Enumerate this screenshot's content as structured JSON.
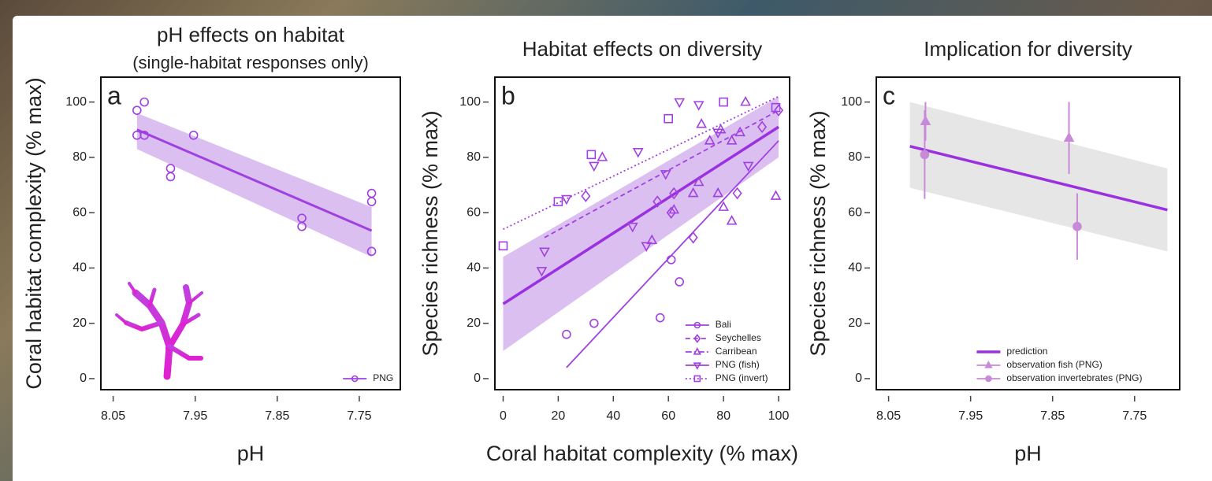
{
  "chart_data": [
    {
      "type": "scatter",
      "title": "pH effects on habitat",
      "subtitle": "(single-habitat responses only)",
      "panel_label": "a",
      "xlabel": "pH",
      "ylabel": "Coral habitat complexity (% max)",
      "xlim": [
        8.065,
        7.7
      ],
      "ylim": [
        -4,
        109
      ],
      "xticks": [
        8.05,
        7.95,
        7.85,
        7.75
      ],
      "yticks": [
        0,
        20,
        40,
        60,
        80,
        100
      ],
      "legend": "lower right",
      "band": {
        "x": [
          8.021,
          7.735
        ],
        "lower": [
          83,
          44
        ],
        "upper": [
          96,
          62
        ],
        "color": "#b070e0"
      },
      "series": [
        {
          "name": "PNG",
          "color": "#a040e0",
          "marker": "circle",
          "linestyle": "solid",
          "x": [
            8.012,
            8.021,
            8.021,
            8.012,
            7.952,
            7.98,
            7.98,
            7.82,
            7.82,
            7.735,
            7.735,
            7.735
          ],
          "values": [
            100,
            97,
            88,
            88,
            88,
            76,
            73,
            58,
            55,
            67,
            64,
            46
          ],
          "fit_x": [
            8.021,
            7.735
          ],
          "fit_y": [
            90,
            53.5
          ]
        }
      ]
    },
    {
      "type": "scatter",
      "title": "Habitat effects on diversity",
      "panel_label": "b",
      "xlabel": "Coral habitat complexity (% max)",
      "ylabel": "Species richness (% max)",
      "xlim": [
        -3,
        104
      ],
      "ylim": [
        -4,
        109
      ],
      "xticks": [
        0,
        20,
        40,
        60,
        80,
        100
      ],
      "yticks": [
        0,
        20,
        40,
        60,
        80,
        100
      ],
      "legend": "lower right",
      "band": {
        "x": [
          0,
          100
        ],
        "lower": [
          10,
          80
        ],
        "upper": [
          44,
          102
        ],
        "color": "#b070e0"
      },
      "trend": {
        "x": [
          0,
          100
        ],
        "values": [
          27,
          91
        ],
        "color": "#9b30e0"
      },
      "series": [
        {
          "name": "Bali",
          "color": "#a040e0",
          "marker": "circle",
          "linestyle": "solid",
          "x": [
            23,
            33,
            57,
            61,
            64
          ],
          "values": [
            16,
            20,
            22,
            43,
            35
          ],
          "fit_x": [
            23,
            100
          ],
          "fit_y": [
            4,
            86
          ]
        },
        {
          "name": "Seychelles",
          "color": "#a040e0",
          "marker": "diamond",
          "linestyle": "dashed",
          "x": [
            30,
            56,
            61,
            62,
            69,
            85,
            94,
            100
          ],
          "values": [
            66,
            64,
            60,
            67,
            51,
            67,
            91,
            97
          ],
          "fit_x": [
            15,
            100
          ],
          "fit_y": [
            51,
            97
          ]
        },
        {
          "name": "Carribean",
          "color": "#a040e0",
          "marker": "triangle-up",
          "linestyle": "dashdot",
          "x": [
            36,
            54,
            62,
            69,
            71,
            72,
            75,
            79,
            83,
            86,
            88,
            99,
            78,
            80,
            83
          ],
          "values": [
            80,
            50,
            61,
            67,
            71,
            92,
            86,
            90,
            86,
            89,
            100,
            66,
            67,
            62,
            57
          ]
        },
        {
          "name": "PNG (fish)",
          "color": "#a040e0",
          "marker": "triangle-down",
          "linestyle": "solid",
          "x": [
            14,
            15,
            23,
            33,
            49,
            47,
            52,
            59,
            64,
            71,
            78,
            89
          ],
          "values": [
            39,
            46,
            65,
            77,
            82,
            55,
            48,
            74,
            100,
            99,
            89,
            77
          ]
        },
        {
          "name": "PNG (invert)",
          "color": "#a040e0",
          "marker": "square",
          "linestyle": "dotted",
          "x": [
            0,
            20,
            32,
            60,
            80,
            99
          ],
          "values": [
            48,
            64,
            81,
            94,
            100,
            98
          ],
          "fit_x": [
            0,
            100
          ],
          "fit_y": [
            54,
            102
          ]
        }
      ]
    },
    {
      "type": "scatter",
      "title": "Implication for diversity",
      "panel_label": "c",
      "xlabel": "pH",
      "ylabel": "Species richness (% max)",
      "xlim": [
        8.065,
        7.695
      ],
      "ylim": [
        -4,
        109
      ],
      "xticks": [
        8.05,
        7.95,
        7.85,
        7.75
      ],
      "yticks": [
        0,
        20,
        40,
        60,
        80,
        100
      ],
      "legend": "lower right",
      "band": {
        "x": [
          8.024,
          7.71
        ],
        "lower": [
          69,
          46
        ],
        "upper": [
          100,
          76
        ],
        "color": "#c8c8c8"
      },
      "series": [
        {
          "name": "prediction",
          "color": "#9b30e0",
          "marker": "none",
          "linestyle": "solid",
          "x": [
            8.024,
            7.71
          ],
          "values": [
            84,
            61
          ]
        },
        {
          "name": "observation fish (PNG)",
          "color": "#c88ad8",
          "marker": "triangle-up",
          "linestyle": "solid",
          "x": [
            8.005,
            7.83
          ],
          "values": [
            93,
            87
          ],
          "errors": [
            7,
            13
          ]
        },
        {
          "name": "observation invertebrates (PNG)",
          "color": "#c88ad8",
          "marker": "circle-filled",
          "linestyle": "solid",
          "x": [
            8.006,
            7.82
          ],
          "values": [
            81,
            55
          ],
          "errors": [
            16,
            12
          ]
        }
      ]
    }
  ]
}
